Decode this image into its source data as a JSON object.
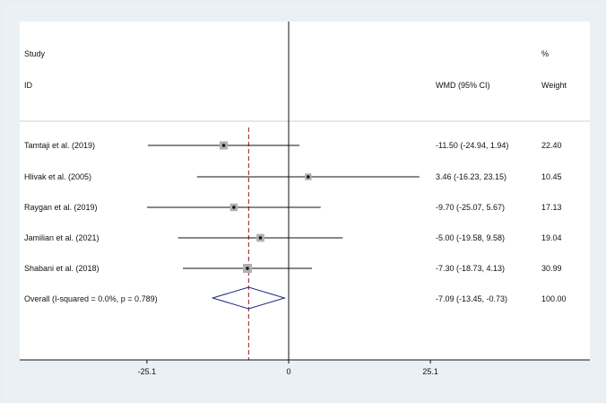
{
  "chart_data": {
    "type": "forest",
    "header": {
      "study_label": "Study",
      "id_label": "ID",
      "effect_label": "WMD (95% CI)",
      "weight_label_top": "%",
      "weight_label_bottom": "Weight"
    },
    "studies": [
      {
        "name": "Tamtaji et al. (2019)",
        "wmd": -11.5,
        "lower": -24.94,
        "upper": 1.94,
        "ci_text": "-11.50 (-24.94, 1.94)",
        "weight": 22.4,
        "weight_text": "22.40"
      },
      {
        "name": "Hlivak et al. (2005)",
        "wmd": 3.46,
        "lower": -16.23,
        "upper": 23.15,
        "ci_text": "3.46 (-16.23, 23.15)",
        "weight": 10.45,
        "weight_text": "10.45"
      },
      {
        "name": "Raygan et al. (2019)",
        "wmd": -9.7,
        "lower": -25.07,
        "upper": 5.67,
        "ci_text": "-9.70 (-25.07, 5.67)",
        "weight": 17.13,
        "weight_text": "17.13"
      },
      {
        "name": "Jamilian et al. (2021)",
        "wmd": -5.0,
        "lower": -19.58,
        "upper": 9.58,
        "ci_text": "-5.00 (-19.58, 9.58)",
        "weight": 19.04,
        "weight_text": "19.04"
      },
      {
        "name": "Shabani et al. (2018)",
        "wmd": -7.3,
        "lower": -18.73,
        "upper": 4.13,
        "ci_text": "-7.30 (-18.73, 4.13)",
        "weight": 30.99,
        "weight_text": "30.99"
      }
    ],
    "overall": {
      "name": "Overall  (I-squared = 0.0%, p = 0.789)",
      "wmd": -7.09,
      "lower": -13.45,
      "upper": -0.73,
      "ci_text": "-7.09 (-13.45, -0.73)",
      "weight_text": "100.00"
    },
    "x_ticks": [
      {
        "value": -25.1,
        "label": "-25.1"
      },
      {
        "value": 0,
        "label": "0"
      },
      {
        "value": 25.1,
        "label": "25.1"
      }
    ],
    "null_line": 0,
    "colors": {
      "background": "#eaf0f4",
      "panel": "#ffffff",
      "line": "#111111",
      "square": "#b0b0b0",
      "pooled_line": "#8b1a1a",
      "diamond": "#1a2a80"
    }
  }
}
